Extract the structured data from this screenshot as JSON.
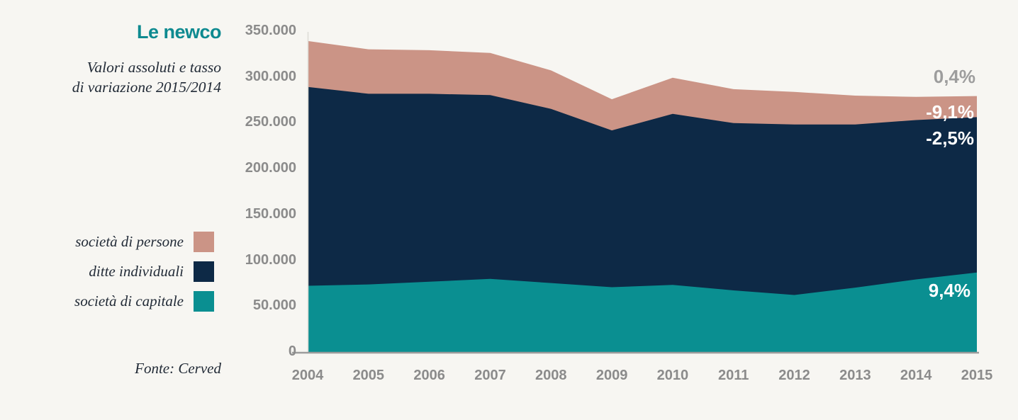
{
  "page": {
    "background_color": "#f7f6f2"
  },
  "header": {
    "title": "Le newco",
    "subtitle_line1": "Valori assoluti e tasso",
    "subtitle_line2": "di variazione 2015/2014"
  },
  "legend": {
    "items": [
      {
        "id": "societa_di_persone",
        "label": "società di persone",
        "color": "#cb9486"
      },
      {
        "id": "ditte_individuali",
        "label": "ditte individuali",
        "color": "#0d2946"
      },
      {
        "id": "societa_di_capitale",
        "label": "società di capitale",
        "color": "#0a8f91"
      }
    ]
  },
  "source": {
    "label": "Fonte: Cerved"
  },
  "chart_data": {
    "type": "area",
    "stacked": true,
    "title": "Le newco",
    "subtitle": "Valori assoluti e tasso di variazione 2015/2014",
    "x": [
      2004,
      2005,
      2006,
      2007,
      2008,
      2009,
      2010,
      2011,
      2012,
      2013,
      2014,
      2015
    ],
    "series": [
      {
        "id": "societa_di_capitale",
        "name": "società di capitale",
        "color": "#0a8f91",
        "values": [
          73000,
          74500,
          77500,
          80500,
          76000,
          71500,
          74000,
          68000,
          63000,
          71000,
          80000,
          87500
        ]
      },
      {
        "id": "ditte_individuali",
        "name": "ditte individuali",
        "color": "#0d2946",
        "values": [
          217000,
          208000,
          205000,
          200500,
          190000,
          171000,
          186500,
          182500,
          186000,
          178000,
          173800,
          169500
        ]
      },
      {
        "id": "societa_di_persone",
        "name": "società di persone",
        "color": "#cb9486",
        "values": [
          50000,
          48500,
          47500,
          46000,
          42000,
          34000,
          39500,
          37000,
          35500,
          31500,
          25300,
          23000
        ]
      }
    ],
    "ylim": [
      0,
      350000
    ],
    "ytick_step": 50000,
    "ytick_labels": [
      "0",
      "50.000",
      "100.000",
      "150.000",
      "200.000",
      "250.000",
      "300.000",
      "350.000"
    ],
    "grid": false,
    "legend_position": "left",
    "variations_2015_2014": {
      "total": "0,4%",
      "societa_di_persone": "-9,1%",
      "ditte_individuali": "-2,5%",
      "societa_di_capitale": "9,4%"
    }
  }
}
